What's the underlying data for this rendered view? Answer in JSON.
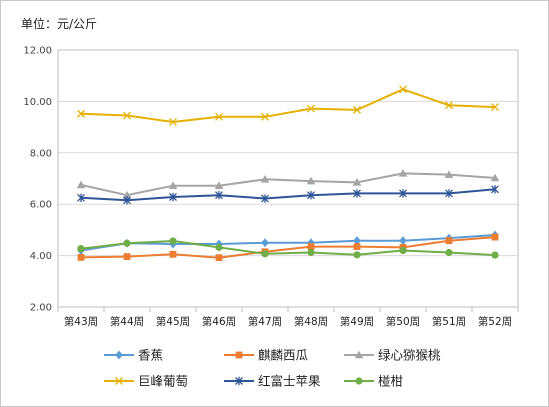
{
  "unit_label": "单位：元/公斤",
  "chart_data": {
    "type": "line",
    "categories": [
      "第43周",
      "第44周",
      "第45周",
      "第46周",
      "第47周",
      "第48周",
      "第49周",
      "第50周",
      "第51周",
      "第52周"
    ],
    "ylim": [
      2,
      12
    ],
    "yticks": [
      "2.00",
      "4.00",
      "6.00",
      "8.00",
      "10.00",
      "12.00"
    ],
    "grid": true,
    "legend_position": "bottom",
    "series": [
      {
        "name": "香蕉",
        "color": "#5b9bd5",
        "marker": "diamond",
        "values": [
          4.2,
          4.48,
          4.45,
          4.45,
          4.5,
          4.5,
          4.58,
          4.58,
          4.68,
          4.8
        ]
      },
      {
        "name": "麒麟西瓜",
        "color": "#ed7d31",
        "marker": "square",
        "values": [
          3.93,
          3.96,
          4.05,
          3.92,
          4.15,
          4.35,
          4.35,
          4.32,
          4.58,
          4.72
        ]
      },
      {
        "name": "绿心猕猴桃",
        "color": "#a5a5a5",
        "marker": "triangle",
        "values": [
          6.75,
          6.35,
          6.72,
          6.72,
          6.97,
          6.9,
          6.85,
          7.2,
          7.15,
          7.02
        ]
      },
      {
        "name": "巨峰葡萄",
        "color": "#e6b000",
        "marker": "x",
        "values": [
          9.52,
          9.45,
          9.2,
          9.4,
          9.4,
          9.72,
          9.67,
          10.47,
          9.85,
          9.78
        ]
      },
      {
        "name": "红富士苹果",
        "color": "#2f5597",
        "marker": "star",
        "values": [
          6.25,
          6.15,
          6.28,
          6.35,
          6.22,
          6.35,
          6.42,
          6.42,
          6.42,
          6.58
        ]
      },
      {
        "name": "椪柑",
        "color": "#70ad47",
        "marker": "circle",
        "values": [
          4.27,
          4.48,
          4.57,
          4.32,
          4.07,
          4.12,
          4.03,
          4.2,
          4.12,
          4.02
        ]
      }
    ]
  }
}
